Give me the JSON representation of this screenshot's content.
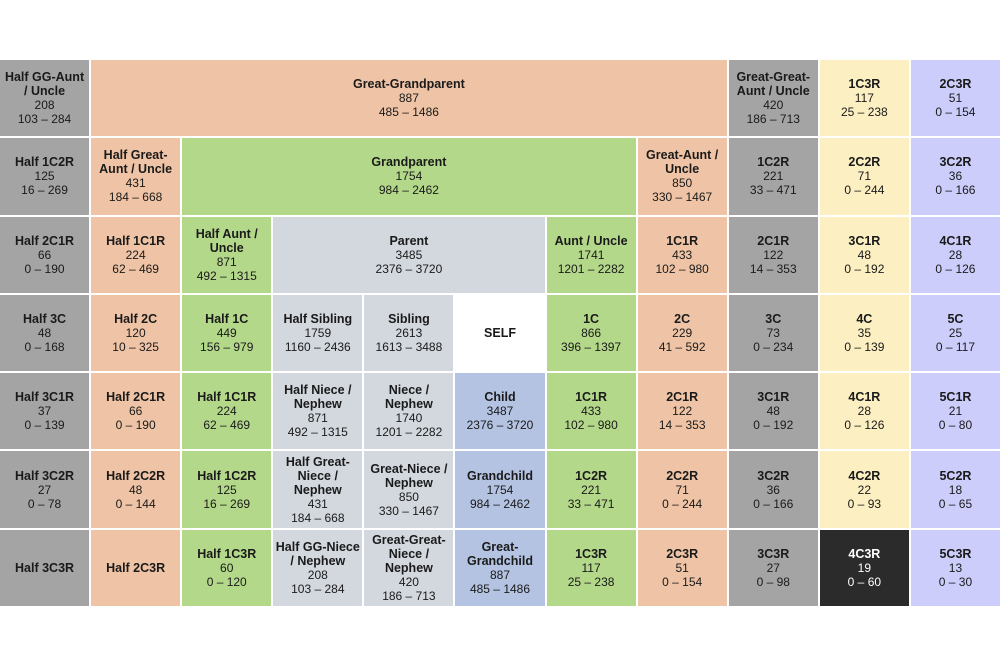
{
  "cells": [
    {
      "row": 1,
      "col": 1,
      "span": 1,
      "color": "gray",
      "title": "Half GG-Aunt / Uncle",
      "avg": "208",
      "range": "103 – 284"
    },
    {
      "row": 1,
      "col": 2,
      "span": 7,
      "color": "orange",
      "title": "Great-Grandparent",
      "avg": "887",
      "range": "485 – 1486"
    },
    {
      "row": 1,
      "col": 9,
      "span": 1,
      "color": "gray",
      "title": "Great-Great-Aunt / Uncle",
      "avg": "420",
      "range": "186 – 713"
    },
    {
      "row": 1,
      "col": 10,
      "span": 1,
      "color": "yellow",
      "title": "1C3R",
      "avg": "117",
      "range": "25 – 238"
    },
    {
      "row": 1,
      "col": 11,
      "span": 1,
      "color": "purple",
      "title": "2C3R",
      "avg": "51",
      "range": "0 – 154"
    },
    {
      "row": 2,
      "col": 1,
      "span": 1,
      "color": "gray",
      "title": "Half 1C2R",
      "avg": "125",
      "range": "16 – 269"
    },
    {
      "row": 2,
      "col": 2,
      "span": 1,
      "color": "orange",
      "title": "Half Great-Aunt / Uncle",
      "avg": "431",
      "range": "184 – 668"
    },
    {
      "row": 2,
      "col": 3,
      "span": 5,
      "color": "green",
      "title": "Grandparent",
      "avg": "1754",
      "range": "984 – 2462"
    },
    {
      "row": 2,
      "col": 8,
      "span": 1,
      "color": "orange",
      "title": "Great-Aunt / Uncle",
      "avg": "850",
      "range": "330 – 1467"
    },
    {
      "row": 2,
      "col": 9,
      "span": 1,
      "color": "gray",
      "title": "1C2R",
      "avg": "221",
      "range": "33 – 471"
    },
    {
      "row": 2,
      "col": 10,
      "span": 1,
      "color": "yellow",
      "title": "2C2R",
      "avg": "71",
      "range": "0 – 244"
    },
    {
      "row": 2,
      "col": 11,
      "span": 1,
      "color": "purple",
      "title": "3C2R",
      "avg": "36",
      "range": "0 – 166"
    },
    {
      "row": 3,
      "col": 1,
      "span": 1,
      "color": "gray",
      "title": "Half 2C1R",
      "avg": "66",
      "range": "0 – 190"
    },
    {
      "row": 3,
      "col": 2,
      "span": 1,
      "color": "orange",
      "title": "Half 1C1R",
      "avg": "224",
      "range": "62 – 469"
    },
    {
      "row": 3,
      "col": 3,
      "span": 1,
      "color": "green",
      "title": "Half Aunt / Uncle",
      "avg": "871",
      "range": "492 – 1315"
    },
    {
      "row": 3,
      "col": 4,
      "span": 3,
      "color": "lgray",
      "title": "Parent",
      "avg": "3485",
      "range": "2376 – 3720"
    },
    {
      "row": 3,
      "col": 7,
      "span": 1,
      "color": "green",
      "title": "Aunt / Uncle",
      "avg": "1741",
      "range": "1201 – 2282"
    },
    {
      "row": 3,
      "col": 8,
      "span": 1,
      "color": "orange",
      "title": "1C1R",
      "avg": "433",
      "range": "102 – 980"
    },
    {
      "row": 3,
      "col": 9,
      "span": 1,
      "color": "gray",
      "title": "2C1R",
      "avg": "122",
      "range": "14 – 353"
    },
    {
      "row": 3,
      "col": 10,
      "span": 1,
      "color": "yellow",
      "title": "3C1R",
      "avg": "48",
      "range": "0 – 192"
    },
    {
      "row": 3,
      "col": 11,
      "span": 1,
      "color": "purple",
      "title": "4C1R",
      "avg": "28",
      "range": "0 – 126"
    },
    {
      "row": 4,
      "col": 1,
      "span": 1,
      "color": "gray",
      "title": "Half 3C",
      "avg": "48",
      "range": "0 – 168"
    },
    {
      "row": 4,
      "col": 2,
      "span": 1,
      "color": "orange",
      "title": "Half 2C",
      "avg": "120",
      "range": "10 – 325"
    },
    {
      "row": 4,
      "col": 3,
      "span": 1,
      "color": "green",
      "title": "Half 1C",
      "avg": "449",
      "range": "156 – 979"
    },
    {
      "row": 4,
      "col": 4,
      "span": 1,
      "color": "lgray",
      "title": "Half Sibling",
      "avg": "1759",
      "range": "1160 – 2436"
    },
    {
      "row": 4,
      "col": 5,
      "span": 1,
      "color": "lgray",
      "title": "Sibling",
      "avg": "2613",
      "range": "1613 – 3488"
    },
    {
      "row": 4,
      "col": 6,
      "span": 1,
      "color": "white",
      "title": "SELF",
      "avg": "",
      "range": ""
    },
    {
      "row": 4,
      "col": 7,
      "span": 1,
      "color": "green",
      "title": "1C",
      "avg": "866",
      "range": "396 – 1397"
    },
    {
      "row": 4,
      "col": 8,
      "span": 1,
      "color": "orange",
      "title": "2C",
      "avg": "229",
      "range": "41 – 592"
    },
    {
      "row": 4,
      "col": 9,
      "span": 1,
      "color": "gray",
      "title": "3C",
      "avg": "73",
      "range": "0 – 234"
    },
    {
      "row": 4,
      "col": 10,
      "span": 1,
      "color": "yellow",
      "title": "4C",
      "avg": "35",
      "range": "0 – 139"
    },
    {
      "row": 4,
      "col": 11,
      "span": 1,
      "color": "purple",
      "title": "5C",
      "avg": "25",
      "range": "0 – 117"
    },
    {
      "row": 5,
      "col": 1,
      "span": 1,
      "color": "gray",
      "title": "Half 3C1R",
      "avg": "37",
      "range": "0 – 139"
    },
    {
      "row": 5,
      "col": 2,
      "span": 1,
      "color": "orange",
      "title": "Half 2C1R",
      "avg": "66",
      "range": "0 – 190"
    },
    {
      "row": 5,
      "col": 3,
      "span": 1,
      "color": "green",
      "title": "Half 1C1R",
      "avg": "224",
      "range": "62 – 469"
    },
    {
      "row": 5,
      "col": 4,
      "span": 1,
      "color": "lgray",
      "title": "Half Niece / Nephew",
      "avg": "871",
      "range": "492 – 1315"
    },
    {
      "row": 5,
      "col": 5,
      "span": 1,
      "color": "lgray",
      "title": "Niece / Nephew",
      "avg": "1740",
      "range": "1201 – 2282"
    },
    {
      "row": 5,
      "col": 6,
      "span": 1,
      "color": "blue",
      "title": "Child",
      "avg": "3487",
      "range": "2376 – 3720"
    },
    {
      "row": 5,
      "col": 7,
      "span": 1,
      "color": "green",
      "title": "1C1R",
      "avg": "433",
      "range": "102 – 980"
    },
    {
      "row": 5,
      "col": 8,
      "span": 1,
      "color": "orange",
      "title": "2C1R",
      "avg": "122",
      "range": "14 – 353"
    },
    {
      "row": 5,
      "col": 9,
      "span": 1,
      "color": "gray",
      "title": "3C1R",
      "avg": "48",
      "range": "0 – 192"
    },
    {
      "row": 5,
      "col": 10,
      "span": 1,
      "color": "yellow",
      "title": "4C1R",
      "avg": "28",
      "range": "0 – 126"
    },
    {
      "row": 5,
      "col": 11,
      "span": 1,
      "color": "purple",
      "title": "5C1R",
      "avg": "21",
      "range": "0 – 80"
    },
    {
      "row": 6,
      "col": 1,
      "span": 1,
      "color": "gray",
      "title": "Half 3C2R",
      "avg": "27",
      "range": "0 – 78"
    },
    {
      "row": 6,
      "col": 2,
      "span": 1,
      "color": "orange",
      "title": "Half 2C2R",
      "avg": "48",
      "range": "0 – 144"
    },
    {
      "row": 6,
      "col": 3,
      "span": 1,
      "color": "green",
      "title": "Half 1C2R",
      "avg": "125",
      "range": "16 – 269"
    },
    {
      "row": 6,
      "col": 4,
      "span": 1,
      "color": "lgray",
      "title": "Half Great-Niece / Nephew",
      "avg": "431",
      "range": "184 – 668"
    },
    {
      "row": 6,
      "col": 5,
      "span": 1,
      "color": "lgray",
      "title": "Great-Niece / Nephew",
      "avg": "850",
      "range": "330 – 1467"
    },
    {
      "row": 6,
      "col": 6,
      "span": 1,
      "color": "blue",
      "title": "Grandchild",
      "avg": "1754",
      "range": "984 – 2462"
    },
    {
      "row": 6,
      "col": 7,
      "span": 1,
      "color": "green",
      "title": "1C2R",
      "avg": "221",
      "range": "33 – 471"
    },
    {
      "row": 6,
      "col": 8,
      "span": 1,
      "color": "orange",
      "title": "2C2R",
      "avg": "71",
      "range": "0 – 244"
    },
    {
      "row": 6,
      "col": 9,
      "span": 1,
      "color": "gray",
      "title": "3C2R",
      "avg": "36",
      "range": "0 – 166"
    },
    {
      "row": 6,
      "col": 10,
      "span": 1,
      "color": "yellow",
      "title": "4C2R",
      "avg": "22",
      "range": "0 – 93"
    },
    {
      "row": 6,
      "col": 11,
      "span": 1,
      "color": "purple",
      "title": "5C2R",
      "avg": "18",
      "range": "0 – 65"
    },
    {
      "row": 7,
      "col": 1,
      "span": 1,
      "color": "gray",
      "title": "Half 3C3R",
      "avg": "",
      "range": ""
    },
    {
      "row": 7,
      "col": 2,
      "span": 1,
      "color": "orange",
      "title": "Half 2C3R",
      "avg": "",
      "range": ""
    },
    {
      "row": 7,
      "col": 3,
      "span": 1,
      "color": "green",
      "title": "Half 1C3R",
      "avg": "60",
      "range": "0 – 120"
    },
    {
      "row": 7,
      "col": 4,
      "span": 1,
      "color": "lgray",
      "title": "Half GG-Niece / Nephew",
      "avg": "208",
      "range": "103 – 284"
    },
    {
      "row": 7,
      "col": 5,
      "span": 1,
      "color": "lgray",
      "title": "Great-Great-Niece / Nephew",
      "avg": "420",
      "range": "186 – 713"
    },
    {
      "row": 7,
      "col": 6,
      "span": 1,
      "color": "blue",
      "title": "Great-Grandchild",
      "avg": "887",
      "range": "485 – 1486"
    },
    {
      "row": 7,
      "col": 7,
      "span": 1,
      "color": "green",
      "title": "1C3R",
      "avg": "117",
      "range": "25 – 238"
    },
    {
      "row": 7,
      "col": 8,
      "span": 1,
      "color": "orange",
      "title": "2C3R",
      "avg": "51",
      "range": "0 – 154"
    },
    {
      "row": 7,
      "col": 9,
      "span": 1,
      "color": "gray",
      "title": "3C3R",
      "avg": "27",
      "range": "0 – 98"
    },
    {
      "row": 7,
      "col": 10,
      "span": 1,
      "color": "black",
      "title": "4C3R",
      "avg": "19",
      "range": "0 – 60"
    },
    {
      "row": 7,
      "col": 11,
      "span": 1,
      "color": "purple",
      "title": "5C3R",
      "avg": "13",
      "range": "0 – 30"
    }
  ]
}
